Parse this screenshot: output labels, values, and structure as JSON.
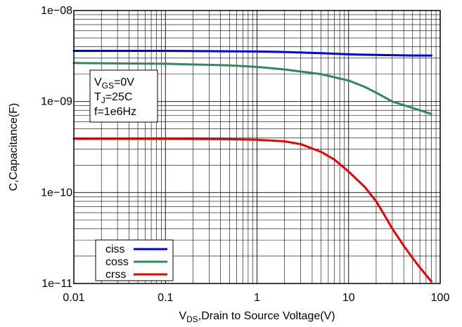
{
  "chart_data": {
    "type": "line",
    "x_scale": "log",
    "y_scale": "log",
    "xlim": [
      0.01,
      100
    ],
    "ylim": [
      1e-11,
      1e-08
    ],
    "grid": true,
    "legend_position": "bottom-left",
    "xlabel": {
      "main": "V",
      "sub": "DS",
      "rest": ",Drain to Source Voltage(V)"
    },
    "ylabel": "C,Capacitance(F)",
    "x_ticks": [
      {
        "value": 0.01,
        "label": "0.01"
      },
      {
        "value": 0.1,
        "label": "0.1"
      },
      {
        "value": 1,
        "label": "1"
      },
      {
        "value": 10,
        "label": "10"
      },
      {
        "value": 100,
        "label": "100"
      }
    ],
    "y_ticks": [
      {
        "value": 1e-11,
        "label": "1e−11"
      },
      {
        "value": 1e-10,
        "label": "1e−10"
      },
      {
        "value": 1e-09,
        "label": "1e−09"
      },
      {
        "value": 1e-08,
        "label": "1e−08"
      }
    ],
    "annotation": [
      {
        "main": "V",
        "sub": "GS",
        "rest": "=0V"
      },
      {
        "main": "T",
        "sub": "J",
        "rest": "=25C"
      },
      {
        "main": "f=1e6Hz",
        "sub": "",
        "rest": ""
      }
    ],
    "series": [
      {
        "name": "ciss",
        "color": "#0000ee",
        "x": [
          0.01,
          0.1,
          1,
          2,
          5,
          10,
          20,
          50,
          80
        ],
        "y": [
          3.6e-09,
          3.6e-09,
          3.55e-09,
          3.5e-09,
          3.4e-09,
          3.3e-09,
          3.25e-09,
          3.2e-09,
          3.2e-09
        ]
      },
      {
        "name": "coss",
        "color": "#2e8b57",
        "x": [
          0.01,
          0.1,
          0.5,
          1,
          2,
          5,
          10,
          15,
          20,
          30,
          50,
          80
        ],
        "y": [
          2.65e-09,
          2.6e-09,
          2.5e-09,
          2.4e-09,
          2.25e-09,
          2e-09,
          1.7e-09,
          1.45e-09,
          1.25e-09,
          1e-09,
          8.5e-10,
          7.3e-10
        ]
      },
      {
        "name": "crss",
        "color": "#ee0000",
        "x": [
          0.01,
          0.1,
          0.5,
          1,
          2,
          3,
          5,
          7,
          10,
          15,
          20,
          25,
          30,
          40,
          50,
          60,
          80
        ],
        "y": [
          3.9e-10,
          3.9e-10,
          3.85e-10,
          3.8e-10,
          3.65e-10,
          3.4e-10,
          2.8e-10,
          2.3e-10,
          1.7e-10,
          1.15e-10,
          8e-11,
          5.5e-11,
          4e-11,
          2.6e-11,
          1.9e-11,
          1.5e-11,
          1.05e-11
        ]
      }
    ]
  }
}
